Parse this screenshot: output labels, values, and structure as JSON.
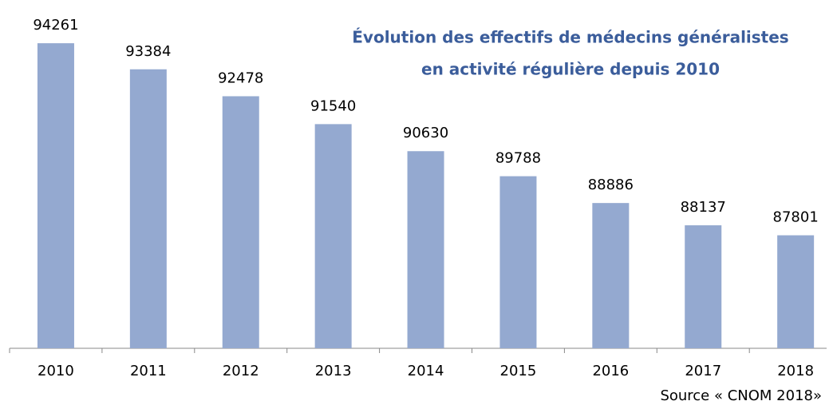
{
  "chart_data": {
    "type": "bar",
    "title": [
      "Évolution des effectifs de médecins généralistes",
      "en activité régulière depuis 2010"
    ],
    "source": "Source « CNOM 2018»",
    "categories": [
      "2010",
      "2011",
      "2012",
      "2013",
      "2014",
      "2015",
      "2016",
      "2017",
      "2018"
    ],
    "values": [
      94261,
      93384,
      92478,
      91540,
      90630,
      89788,
      88886,
      88137,
      87801
    ],
    "color": "#94a9d0",
    "ylim": [
      84000,
      95500
    ]
  }
}
